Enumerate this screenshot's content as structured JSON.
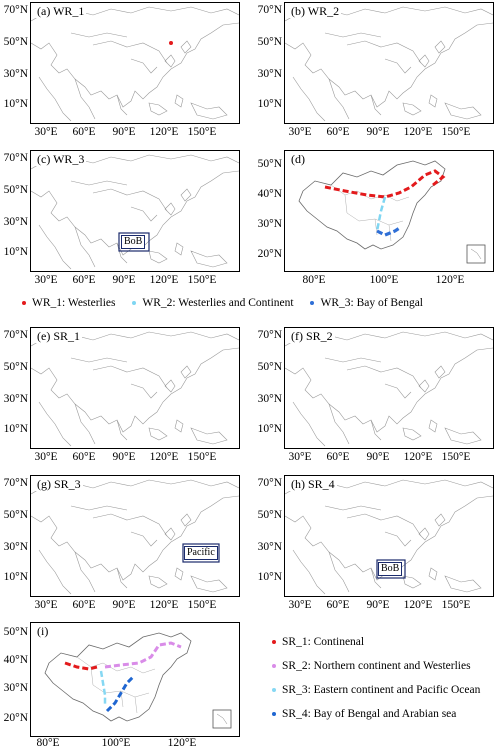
{
  "colors": {
    "wr1": "#e31a1c",
    "wr2": "#7fd6f2",
    "wr3": "#2f6fd6",
    "sr1": "#e31a1c",
    "sr2": "#d98ce8",
    "sr3": "#86d8f3",
    "sr4": "#1f66d1"
  },
  "asia_ticks": {
    "y": [
      "70°N",
      "50°N",
      "30°N",
      "10°N"
    ],
    "x": [
      "30°E",
      "60°E",
      "90°E",
      "120°E",
      "150°E"
    ]
  },
  "china_ticks": {
    "y": [
      "50°N",
      "40°N",
      "30°N",
      "20°N"
    ],
    "x": [
      "80°E",
      "100°E",
      "120°E"
    ]
  },
  "panels": {
    "a": "(a) WR_1",
    "b": "(b) WR_2",
    "c": "(c) WR_3",
    "d": "(d)",
    "e": "(e) SR_1",
    "f": "(f) SR_2",
    "g": "(g) SR_3",
    "h": "(h) SR_4",
    "i": "(i)"
  },
  "box_labels": {
    "bob_c": "BoB",
    "pacific_g": "Pacific",
    "bob_h": "BoB"
  },
  "legend_wr": [
    "WR_1: Westerlies",
    "WR_2: Westerlies and Continent",
    "WR_3: Bay of Bengal"
  ],
  "legend_sr": [
    "SR_1: Continenal",
    "SR_2: Northern  continent and Westerlies",
    "SR_3: Eastern  continent and Pacific Ocean",
    "SR_4: Bay of Bengal and Arabian sea"
  ]
}
